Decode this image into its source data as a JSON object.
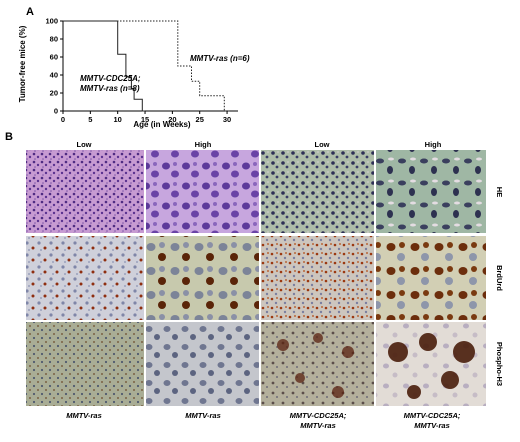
{
  "panel_a": {
    "letter": "A",
    "chart_data": {
      "type": "line",
      "step": true,
      "xlabel": "Age (in Weeks)",
      "ylabel": "Tumor-free mice (%)",
      "xlim": [
        0,
        32
      ],
      "ylim": [
        0,
        100
      ],
      "xticks": [
        0,
        5,
        10,
        15,
        20,
        25,
        30
      ],
      "yticks": [
        0,
        20,
        40,
        60,
        80,
        100
      ],
      "series": [
        {
          "name": "MMTV-ras (n=6)",
          "style": "dotted",
          "x": [
            0,
            21,
            21,
            23.5,
            23.5,
            25,
            25,
            29.5,
            29.5,
            30.5
          ],
          "y": [
            100,
            100,
            50,
            50,
            33,
            33,
            17,
            17,
            0,
            0
          ]
        },
        {
          "name_line1": "MMTV-CDC25A;",
          "name_line2": "MMTV-ras (n=8)",
          "style": "solid",
          "x": [
            0,
            10,
            10,
            11.5,
            11.5,
            12.5,
            12.5,
            13,
            13,
            14,
            14,
            14.5,
            14.5,
            15
          ],
          "y": [
            100,
            100,
            63,
            63,
            38,
            38,
            25,
            25,
            13,
            13,
            13,
            13,
            0,
            0
          ]
        }
      ]
    }
  },
  "panel_b": {
    "letter": "B",
    "col_headers": [
      "Low",
      "High",
      "Low",
      "High"
    ],
    "row_labels": [
      "HE",
      "BrdUrd",
      "Phospho-H3"
    ],
    "col_footers": [
      {
        "line1": "MMTV-ras",
        "line2": ""
      },
      {
        "line1": "MMTV-ras",
        "line2": ""
      },
      {
        "line1": "MMTV-CDC25A;",
        "line2": "MMTV-ras"
      },
      {
        "line1": "MMTV-CDC25A;",
        "line2": "MMTV-ras"
      }
    ],
    "tile_colors": {
      "he_bg": "#c89ad0",
      "he_dot": "#4a2a7a",
      "he2_bg": "#b7c4b6",
      "he2_dot": "#2e2e4e",
      "brdu_bg": "#c8c8cc",
      "brdu_dot": "#8a3a12",
      "ph3_bg": "#b9b5a2",
      "ph3_dot": "#5a3420"
    }
  }
}
